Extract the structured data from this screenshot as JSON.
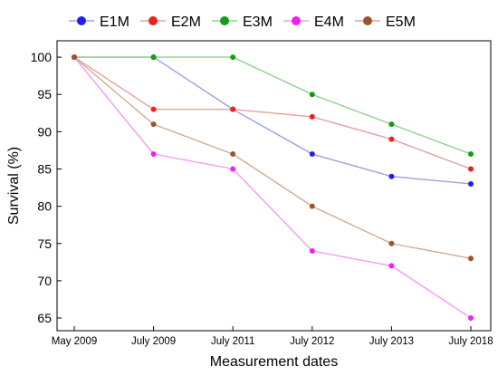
{
  "chart_data": {
    "type": "line",
    "title": "",
    "xlabel": "Measurement dates",
    "ylabel": "Survival (%)",
    "categories": [
      "May 2009",
      "July 2009",
      "July 2011",
      "July 2012",
      "July 2013",
      "July 2018"
    ],
    "yticks": [
      65,
      70,
      75,
      80,
      85,
      90,
      95,
      100
    ],
    "ylim": [
      63.3,
      102.2
    ],
    "grid": false,
    "legend_position": "top",
    "series": [
      {
        "name": "E1M",
        "color": "#2020ee",
        "line_color": "#9f9fe6",
        "values": [
          100,
          100,
          93,
          87,
          84,
          83
        ]
      },
      {
        "name": "E2M",
        "color": "#ee2020",
        "line_color": "#e69f9f",
        "values": [
          100,
          93,
          93,
          92,
          89,
          85
        ]
      },
      {
        "name": "E3M",
        "color": "#129d12",
        "line_color": "#8fcf8f",
        "values": [
          100,
          100,
          100,
          95,
          91,
          87
        ]
      },
      {
        "name": "E4M",
        "color": "#f020f0",
        "line_color": "#f39af3",
        "values": [
          100,
          87,
          85,
          74,
          72,
          65
        ]
      },
      {
        "name": "E5M",
        "color": "#a0522d",
        "line_color": "#d1ab94",
        "values": [
          100,
          91,
          87,
          80,
          75,
          73
        ]
      }
    ]
  }
}
